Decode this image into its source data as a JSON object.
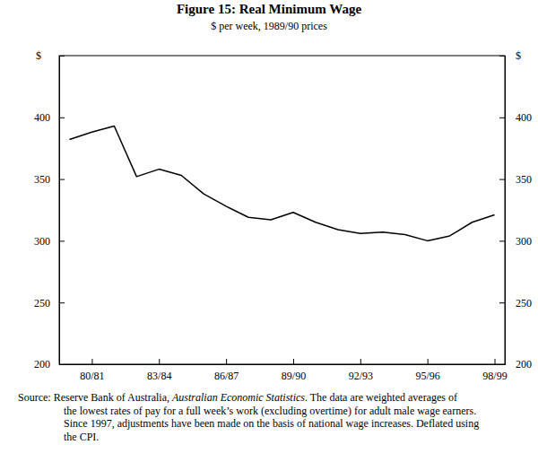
{
  "chart_data": {
    "type": "line",
    "title": "Figure 15: Real Minimum Wage",
    "subtitle": "$ per week, 1989/90 prices",
    "y_label": "$",
    "y2_label": "$",
    "categories": [
      null,
      "80/81",
      null,
      null,
      "83/84",
      null,
      null,
      "86/87",
      null,
      null,
      "89/90",
      null,
      null,
      "92/93",
      null,
      null,
      "95/96",
      null,
      null,
      "98/99"
    ],
    "values": [
      382,
      388,
      393,
      352,
      358,
      353,
      338,
      328,
      319,
      317,
      323,
      315,
      309,
      306,
      307,
      305,
      300,
      304,
      315,
      321
    ],
    "color": "#000000",
    "ylim": [
      200,
      450
    ],
    "yticks": [
      200,
      250,
      300,
      350,
      400
    ],
    "y2lim": [
      200,
      450
    ],
    "y2ticks": [
      200,
      250,
      300,
      350,
      400
    ],
    "notes": [
      [
        "Source: Reserve Bank of Australia, ",
        "Australian Economic Statistics",
        ". The data are weighted averages of"
      ],
      [
        "the lowest rates of pay for a full week’s work (excluding overtime) for adult male wage earners."
      ],
      [
        "Since 1997, adjustments have been made on the basis of national wage increases. Deflated using"
      ],
      [
        "the CPI."
      ]
    ]
  }
}
